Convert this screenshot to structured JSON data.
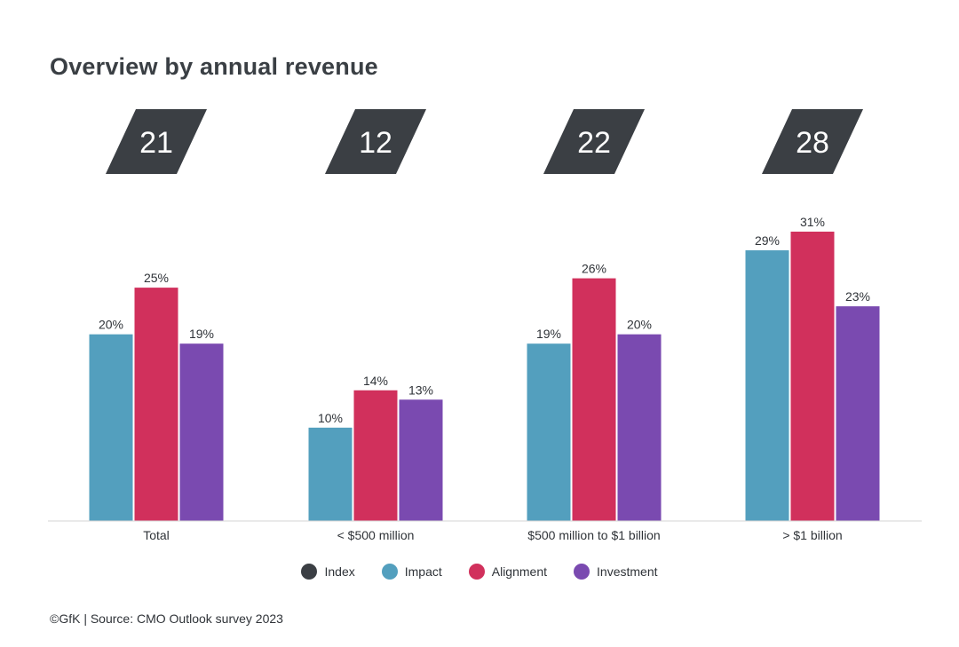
{
  "chart_data": {
    "type": "bar",
    "title": "Overview by annual revenue",
    "categories": [
      "Total",
      "< $500 million",
      "$500 million to $1 billion",
      "> $1 billion"
    ],
    "index_values": [
      21,
      12,
      22,
      28
    ],
    "series": [
      {
        "name": "Impact",
        "color": "#539fbe",
        "values": [
          20,
          10,
          19,
          29
        ]
      },
      {
        "name": "Alignment",
        "color": "#d1305c",
        "values": [
          25,
          14,
          26,
          31
        ]
      },
      {
        "name": "Investment",
        "color": "#7a4ab0",
        "values": [
          19,
          13,
          20,
          23
        ]
      }
    ],
    "value_suffix": "%",
    "ylim": [
      0,
      31
    ],
    "grid": false,
    "legend": {
      "placement": "bottom-center",
      "entries": [
        {
          "name": "Index",
          "color": "#3b3f44"
        },
        {
          "name": "Impact",
          "color": "#539fbe"
        },
        {
          "name": "Alignment",
          "color": "#d1305c"
        },
        {
          "name": "Investment",
          "color": "#7a4ab0"
        }
      ]
    },
    "index_color": "#3b3f44"
  },
  "footer": {
    "source": "©GfK | Source: CMO Outlook survey 2023"
  }
}
